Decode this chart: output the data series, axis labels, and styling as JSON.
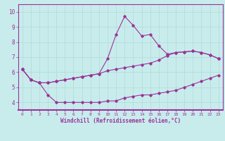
{
  "xlabel": "Windchill (Refroidissement éolien,°C)",
  "bg_color": "#c8ecec",
  "grid_color": "#b0d8d8",
  "line_color": "#993399",
  "xlim": [
    -0.5,
    23.5
  ],
  "ylim": [
    3.5,
    10.5
  ],
  "xticks": [
    0,
    1,
    2,
    3,
    4,
    5,
    6,
    7,
    8,
    9,
    10,
    11,
    12,
    13,
    14,
    15,
    16,
    17,
    18,
    19,
    20,
    21,
    22,
    23
  ],
  "yticks": [
    4,
    5,
    6,
    7,
    8,
    9,
    10
  ],
  "line1_x": [
    0,
    1,
    2,
    3,
    4,
    5,
    6,
    7,
    8,
    9,
    10,
    11,
    12,
    13,
    14,
    15,
    16,
    17,
    18,
    19,
    20,
    21,
    22,
    23
  ],
  "line1_y": [
    6.2,
    5.5,
    5.3,
    4.5,
    4.0,
    4.0,
    4.0,
    4.0,
    4.0,
    4.0,
    4.1,
    4.1,
    4.3,
    4.4,
    4.5,
    4.5,
    4.6,
    4.7,
    4.8,
    5.0,
    5.2,
    5.4,
    5.6,
    5.8
  ],
  "line2_x": [
    0,
    1,
    2,
    3,
    4,
    5,
    6,
    7,
    8,
    9,
    10,
    11,
    12,
    13,
    14,
    15,
    16,
    17,
    18,
    19,
    20,
    21,
    22,
    23
  ],
  "line2_y": [
    6.2,
    5.5,
    5.3,
    5.3,
    5.4,
    5.5,
    5.6,
    5.7,
    5.8,
    5.9,
    6.1,
    6.2,
    6.3,
    6.4,
    6.5,
    6.6,
    6.8,
    7.1,
    7.3,
    7.35,
    7.4,
    7.3,
    7.15,
    6.9
  ],
  "line3_x": [
    0,
    1,
    2,
    3,
    4,
    5,
    6,
    7,
    8,
    9,
    10,
    11,
    12,
    13,
    14,
    15,
    16,
    17,
    18,
    19,
    20,
    21,
    22,
    23
  ],
  "line3_y": [
    6.2,
    5.5,
    5.3,
    5.3,
    5.4,
    5.5,
    5.6,
    5.7,
    5.8,
    5.9,
    6.9,
    8.5,
    9.7,
    9.1,
    8.4,
    8.5,
    7.75,
    7.2,
    7.3,
    7.35,
    7.4,
    7.3,
    7.15,
    6.9
  ]
}
